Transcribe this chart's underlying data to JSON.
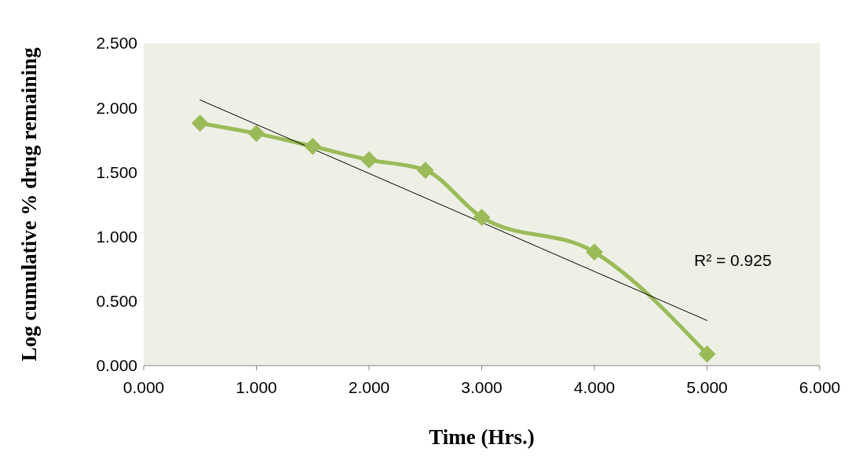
{
  "chart_data": {
    "type": "line",
    "xlabel": "Time (Hrs.)",
    "ylabel": "Log cumulative % drug remaining",
    "xlim": [
      0,
      6
    ],
    "xticks": [
      {
        "value": 0,
        "label": "0.000"
      },
      {
        "value": 1,
        "label": "1.000"
      },
      {
        "value": 2,
        "label": "2.000"
      },
      {
        "value": 3,
        "label": "3.000"
      },
      {
        "value": 4,
        "label": "4.000"
      },
      {
        "value": 5,
        "label": "5.000"
      },
      {
        "value": 6,
        "label": "6.000"
      }
    ],
    "ylim": [
      0,
      2.5
    ],
    "yticks": [
      {
        "value": 0,
        "label": "0.000"
      },
      {
        "value": 0.5,
        "label": "0.500"
      },
      {
        "value": 1,
        "label": "1.000"
      },
      {
        "value": 1.5,
        "label": "1.500"
      },
      {
        "value": 2,
        "label": "2.000"
      },
      {
        "value": 2.5,
        "label": "2.500"
      }
    ],
    "series": [
      {
        "color": "#9bbb59",
        "marker": "diamond",
        "x": [
          0.5,
          1,
          1.5,
          2,
          2.5,
          3,
          4,
          5
        ],
        "values": [
          1.88,
          1.8,
          1.7,
          1.595,
          1.515,
          1.15,
          0.88,
          0.09
        ]
      },
      {
        "color": "#000000",
        "marker": "none",
        "x": [
          0.5,
          5
        ],
        "values": [
          2.06,
          0.35
        ]
      }
    ],
    "annotations": [
      "R² = 0.925"
    ]
  }
}
